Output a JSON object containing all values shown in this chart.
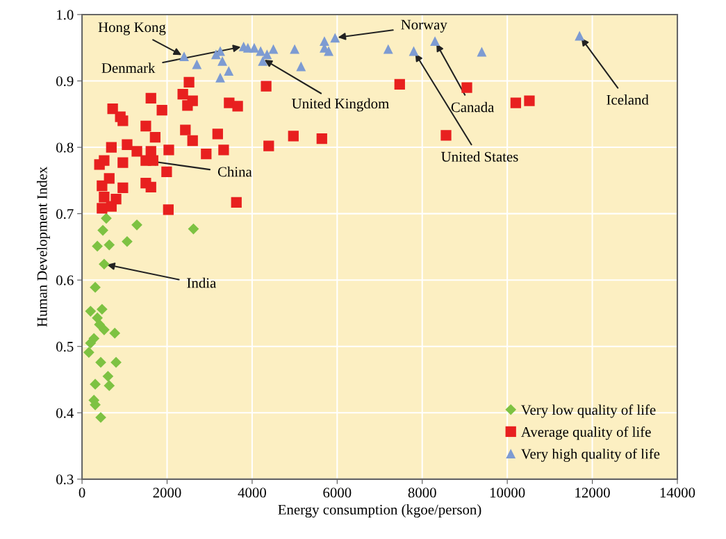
{
  "chart_data": {
    "type": "scatter",
    "xlabel": "Energy consumption (kgoe/person)",
    "ylabel": "Human Development Index",
    "xlim": [
      0,
      14000
    ],
    "xticks": [
      0,
      2000,
      4000,
      6000,
      8000,
      10000,
      12000,
      14000
    ],
    "ylim": [
      0.3,
      1.0
    ],
    "yticks": [
      0.3,
      0.4,
      0.5,
      0.6,
      0.7,
      0.8,
      0.9,
      {
        "value": 1,
        "label": "1.0"
      }
    ],
    "grid": true,
    "legend": "bottom right",
    "series": [
      {
        "name": "Very low quality of life",
        "color": "#7dc242",
        "marker": "diamond",
        "x": [
          570,
          1290,
          2620,
          490,
          360,
          640,
          1060,
          520,
          310,
          200,
          470,
          360,
          410,
          520,
          770,
          280,
          200,
          160,
          440,
          800,
          610,
          310,
          640,
          280,
          310,
          440
        ],
        "values": [
          0.693,
          0.683,
          0.677,
          0.675,
          0.651,
          0.653,
          0.658,
          0.624,
          0.589,
          0.553,
          0.556,
          0.543,
          0.533,
          0.525,
          0.52,
          0.512,
          0.505,
          0.491,
          0.476,
          0.476,
          0.455,
          0.443,
          0.441,
          0.419,
          0.412,
          0.393
        ]
      },
      {
        "name": "Average quality of life",
        "color": "#e8201f",
        "marker": "square",
        "x": [
          2516,
          2370,
          2600,
          2480,
          1620,
          1880,
          720,
          900,
          960,
          1500,
          1720,
          2040,
          2430,
          2600,
          2920,
          3190,
          3330,
          3460,
          3660,
          4330,
          4390,
          3630,
          2030,
          1990,
          1500,
          1620,
          690,
          1060,
          1290,
          520,
          410,
          960,
          640,
          470,
          960,
          520,
          800,
          470,
          690,
          1670,
          1620,
          1500,
          7470,
          9050,
          8560,
          5640,
          4970,
          10200,
          10520
        ],
        "values": [
          0.898,
          0.88,
          0.87,
          0.863,
          0.874,
          0.856,
          0.858,
          0.846,
          0.84,
          0.832,
          0.815,
          0.796,
          0.826,
          0.81,
          0.79,
          0.82,
          0.796,
          0.867,
          0.862,
          0.892,
          0.802,
          0.717,
          0.706,
          0.763,
          0.746,
          0.74,
          0.8,
          0.804,
          0.794,
          0.78,
          0.774,
          0.777,
          0.753,
          0.742,
          0.739,
          0.725,
          0.722,
          0.708,
          0.711,
          0.78,
          0.794,
          0.78,
          0.895,
          0.89,
          0.818,
          0.813,
          0.817,
          0.867,
          0.87
        ]
      },
      {
        "name": "Very high quality of life",
        "color": "#7d9bd2",
        "marker": "triangle",
        "x": [
          2400,
          2700,
          3150,
          3250,
          3300,
          3250,
          3450,
          3800,
          3900,
          4050,
          4200,
          4250,
          4350,
          4500,
          5000,
          5150,
          5700,
          5700,
          5800,
          5950,
          7200,
          7800,
          8300,
          9400,
          11700
        ],
        "values": [
          0.937,
          0.925,
          0.94,
          0.945,
          0.93,
          0.905,
          0.915,
          0.952,
          0.95,
          0.95,
          0.945,
          0.93,
          0.94,
          0.948,
          0.948,
          0.922,
          0.95,
          0.96,
          0.945,
          0.965,
          0.948,
          0.945,
          0.96,
          0.944,
          0.968
        ]
      }
    ],
    "annotations": [
      {
        "text": "Hong Kong",
        "x": 2400,
        "y": 0.937
      },
      {
        "text": "Denmark",
        "x": 3800,
        "y": 0.952
      },
      {
        "text": "United Kingdom",
        "x": 4230,
        "y": 0.934
      },
      {
        "text": "Norway",
        "x": 5950,
        "y": 0.965
      },
      {
        "text": "Canada",
        "x": 8300,
        "y": 0.96
      },
      {
        "text": "United States",
        "x": 7800,
        "y": 0.945
      },
      {
        "text": "Iceland",
        "x": 11700,
        "y": 0.968
      },
      {
        "text": "China",
        "x": 1500,
        "y": 0.78
      },
      {
        "text": "India",
        "x": 520,
        "y": 0.624
      }
    ]
  }
}
